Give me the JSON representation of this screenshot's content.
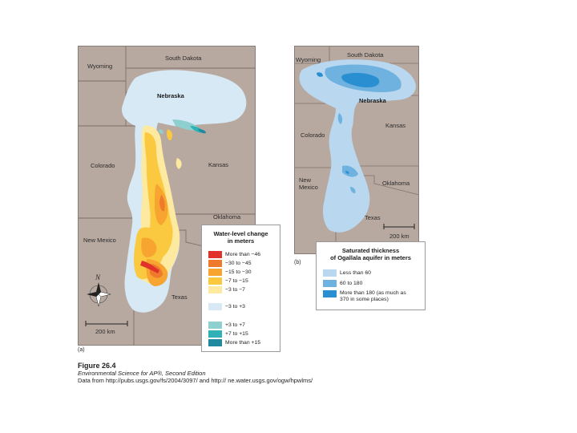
{
  "map_a": {
    "panel_label": "(a)",
    "states": {
      "wyoming": "Wyoming",
      "south_dakota": "South Dakota",
      "nebraska": "Nebraska",
      "colorado": "Colorado",
      "kansas": "Kansas",
      "oklahoma": "Oklahoma",
      "new_mexico": "New Mexico",
      "texas": "Texas"
    },
    "compass_letter": "N",
    "scale_label": "200 km",
    "legend": {
      "title_line1": "Water-level change",
      "title_line2": "in meters",
      "items": [
        {
          "label": "More than −46",
          "color": "#e0322b"
        },
        {
          "label": "−30 to −45",
          "color": "#ef7a2c"
        },
        {
          "label": "−15 to −30",
          "color": "#f7a431"
        },
        {
          "label": "−7 to −15",
          "color": "#fbc93f"
        },
        {
          "label": "−3 to −7",
          "color": "#fdeaa0"
        },
        {
          "label": "−3 to +3",
          "color": "#d6e9f4"
        },
        {
          "label": "+3 to +7",
          "color": "#8ed0cf"
        },
        {
          "label": "+7 to +15",
          "color": "#2fb1b6"
        },
        {
          "label": "More than +15",
          "color": "#1f8a9f"
        }
      ]
    }
  },
  "map_b": {
    "panel_label": "(b)",
    "states": {
      "wyoming": "Wyoming",
      "south_dakota": "South Dakota",
      "nebraska": "Nebraska",
      "colorado": "Colorado",
      "kansas": "Kansas",
      "oklahoma": "Oklahoma",
      "new_mexico": "New Mexico",
      "texas": "Texas"
    },
    "scale_label": "200 km",
    "legend": {
      "title_line1": "Saturated thickness",
      "title_line2": "of Ogallala aquifer in meters",
      "items": [
        {
          "label_line1": "Less than 60",
          "label_line2": "",
          "color": "#b9d8f0"
        },
        {
          "label_line1": "60 to 180",
          "label_line2": "",
          "color": "#6fb2e0"
        },
        {
          "label_line1": "More than 180 (as much as",
          "label_line2": "370 in some places)",
          "color": "#2a8fd0"
        }
      ]
    }
  },
  "caption": {
    "figure": "Figure 26.4",
    "source_book": "Environmental Science for AP®, Second Edition",
    "data_source": "Data from http://pubs.usgs.gov/fs/2004/3097/ and http:// ne.water.usgs.gov/ogw/hpwlms/"
  },
  "colors": {
    "land": "#b8a9a0",
    "border": "#7d6f69",
    "aquifer_light": "#d6e9f4"
  }
}
